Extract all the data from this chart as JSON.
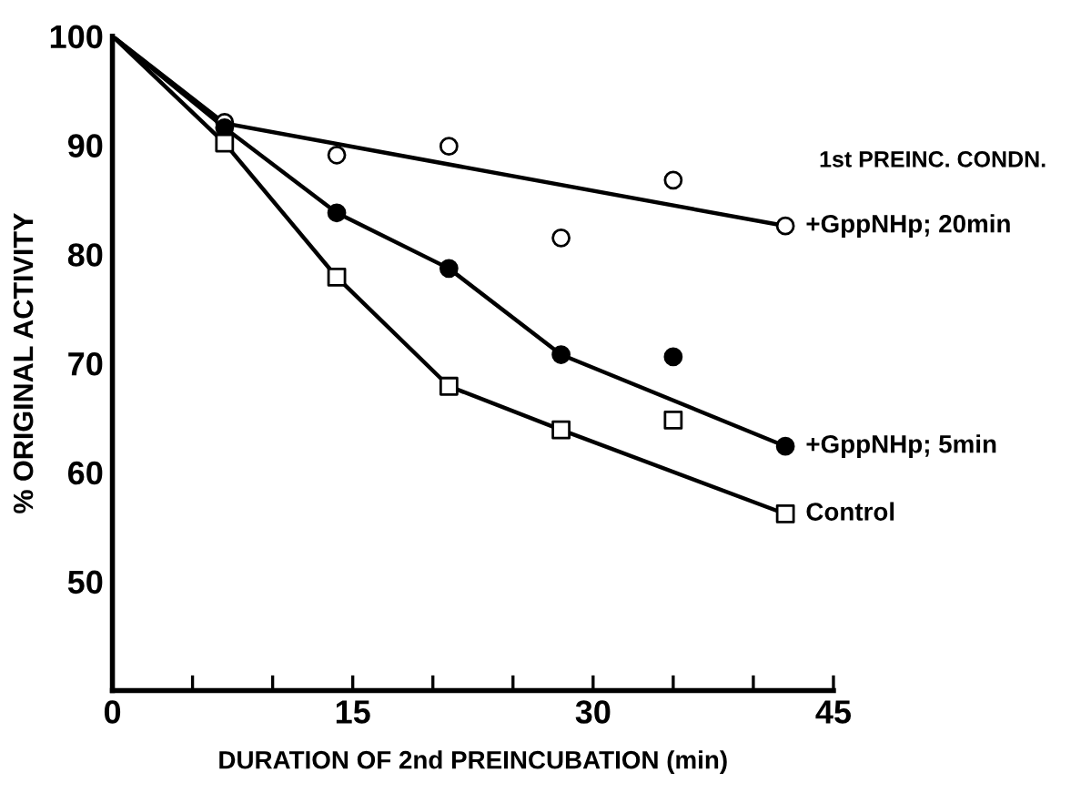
{
  "chart_data": {
    "type": "scatter",
    "xlabel": "DURATION OF 2nd PREINCUBATION (min)",
    "ylabel": "% ORIGINAL ACTIVITY",
    "xlim": [
      0,
      45
    ],
    "ylim": [
      40,
      100
    ],
    "xticks": [
      0,
      {
        "value": 5,
        "label": null
      },
      {
        "value": 10,
        "label": null
      },
      15,
      {
        "value": 20,
        "label": null
      },
      {
        "value": 25,
        "label": null
      },
      30,
      {
        "value": 35,
        "label": null
      },
      {
        "value": 40,
        "label": null
      },
      45
    ],
    "yticks": [
      50,
      60,
      70,
      80,
      90,
      100
    ],
    "grid": false,
    "legend": false,
    "tick_labels": true,
    "annotations": [
      "1st PREINC. CONDN."
    ],
    "series": [
      {
        "type": "line",
        "color": "#000000",
        "marker": "none",
        "line_style": "solid",
        "x": [
          0,
          7,
          42
        ],
        "values": [
          100,
          92,
          82.6
        ]
      },
      {
        "type": "line",
        "color": "#000000",
        "marker": "none",
        "line_style": "solid",
        "x": [
          0,
          7,
          14,
          21,
          28,
          42
        ],
        "values": [
          100,
          91.6,
          83.8,
          78.7,
          70.8,
          62.4
        ]
      },
      {
        "type": "line",
        "color": "#000000",
        "marker": "none",
        "line_style": "solid",
        "x": [
          0,
          7,
          14,
          21,
          28,
          42
        ],
        "values": [
          100,
          90.2,
          77.9,
          67.9,
          63.9,
          56.2
        ]
      },
      {
        "name": "+GppNHp; 20min",
        "color": "#ffffff",
        "marker": "circle",
        "x": [
          7,
          14,
          21,
          28,
          35,
          42
        ],
        "values": [
          92.1,
          89.1,
          89.9,
          81.5,
          86.8,
          82.6
        ]
      },
      {
        "name": "+GppNHp; 5min",
        "color": "#000000",
        "marker": "circle",
        "x": [
          7,
          14,
          21,
          28,
          35,
          42
        ],
        "values": [
          91.6,
          83.8,
          78.7,
          70.8,
          70.6,
          62.4
        ]
      },
      {
        "name": "Control",
        "color": "#ffffff",
        "marker": "square",
        "x": [
          7,
          14,
          21,
          28,
          35,
          42
        ],
        "values": [
          90.2,
          77.9,
          67.9,
          63.9,
          64.8,
          56.2
        ]
      }
    ]
  }
}
